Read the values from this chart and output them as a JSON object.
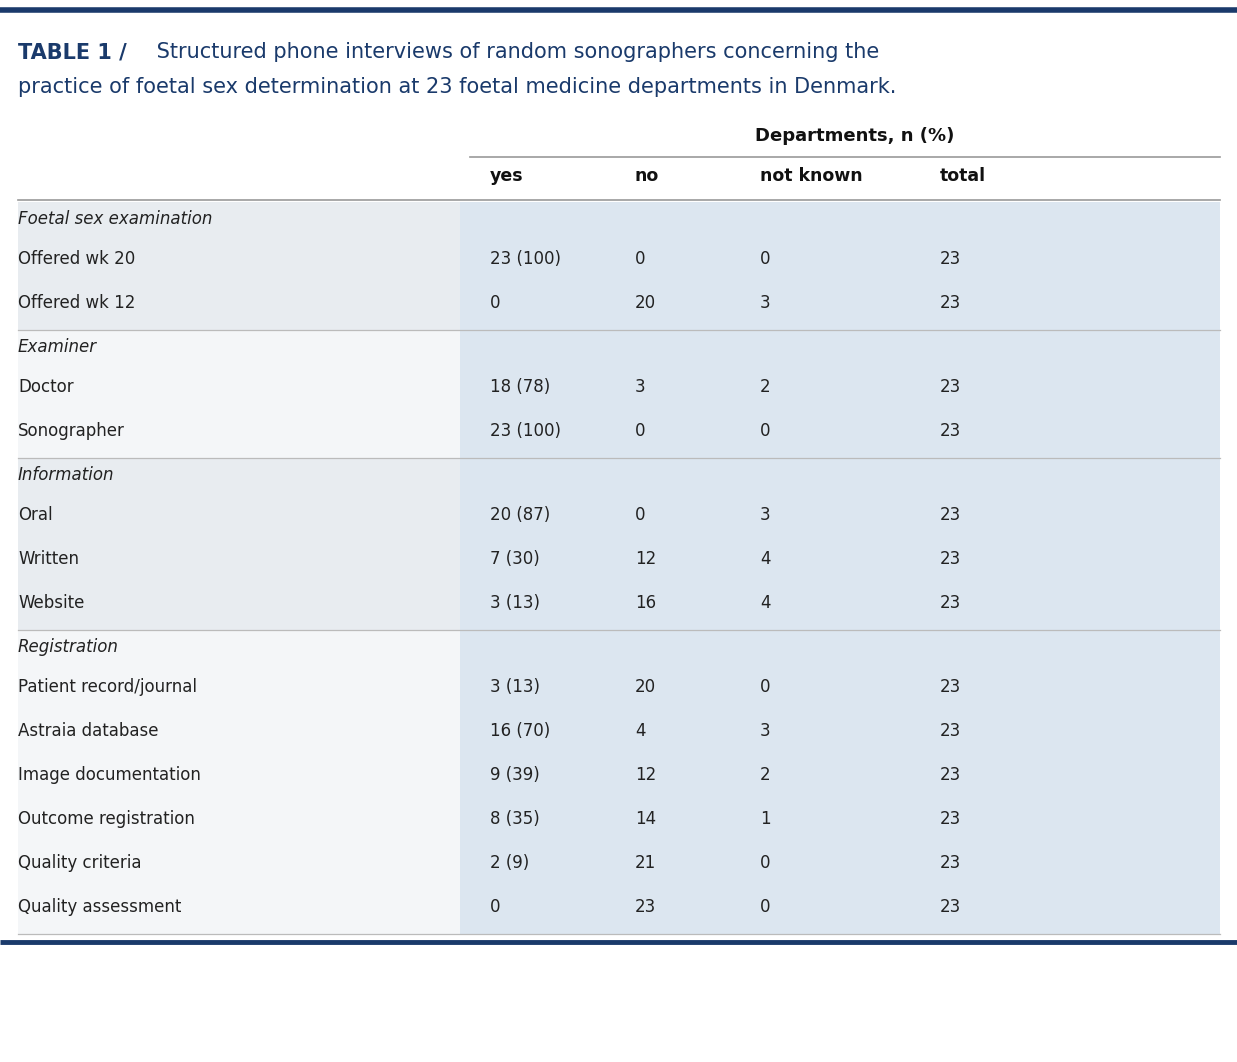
{
  "title_bold": "TABLE 1 /",
  "title_rest_line1": " Structured phone interviews of random sonographers concerning the",
  "title_line2": "practice of foetal sex determination at 23 foetal medicine departments in Denmark.",
  "subheader": "Departments, n (%)",
  "col_headers": [
    "yes",
    "no",
    "not known",
    "total"
  ],
  "sections": [
    {
      "section_header": "Foetal sex examination",
      "bg": "#e8ecf0",
      "rows": [
        {
          "label": "Offered wk 20",
          "yes": "23 (100)",
          "no": "0",
          "not_known": "0",
          "total": "23"
        },
        {
          "label": "Offered wk 12",
          "yes": "0",
          "no": "20",
          "not_known": "3",
          "total": "23"
        }
      ]
    },
    {
      "section_header": "Examiner",
      "bg": "#f4f6f8",
      "rows": [
        {
          "label": "Doctor",
          "yes": "18 (78)",
          "no": "3",
          "not_known": "2",
          "total": "23"
        },
        {
          "label": "Sonographer",
          "yes": "23 (100)",
          "no": "0",
          "not_known": "0",
          "total": "23"
        }
      ]
    },
    {
      "section_header": "Information",
      "bg": "#e8ecf0",
      "rows": [
        {
          "label": "Oral",
          "yes": "20 (87)",
          "no": "0",
          "not_known": "3",
          "total": "23"
        },
        {
          "label": "Written",
          "yes": "7 (30)",
          "no": "12",
          "not_known": "4",
          "total": "23"
        },
        {
          "label": "Website",
          "yes": "3 (13)",
          "no": "16",
          "not_known": "4",
          "total": "23"
        }
      ]
    },
    {
      "section_header": "Registration",
      "bg": "#f4f6f8",
      "rows": [
        {
          "label": "Patient record/journal",
          "yes": "3 (13)",
          "no": "20",
          "not_known": "0",
          "total": "23"
        },
        {
          "label": "Astraia database",
          "yes": "16 (70)",
          "no": "4",
          "not_known": "3",
          "total": "23"
        },
        {
          "label": "Image documentation",
          "yes": "9 (39)",
          "no": "12",
          "not_known": "2",
          "total": "23"
        },
        {
          "label": "Outcome registration",
          "yes": "8 (35)",
          "no": "14",
          "not_known": "1",
          "total": "23"
        },
        {
          "label": "Quality criteria",
          "yes": "2 (9)",
          "no": "21",
          "not_known": "0",
          "total": "23"
        },
        {
          "label": "Quality assessment",
          "yes": "0",
          "no": "23",
          "not_known": "0",
          "total": "23"
        }
      ]
    }
  ],
  "bg_color": "#ffffff",
  "right_col_bg": "#dce6f0",
  "top_line_color": "#1a3a6b",
  "bottom_line_color": "#1a3a6b",
  "divider_line_color": "#999999",
  "section_divider_color": "#bbbbbb",
  "title_color": "#1a3a6b",
  "text_color": "#222222",
  "header_text_color": "#111111",
  "font_size_title": 15,
  "font_size_table": 12,
  "font_size_subheader": 13
}
